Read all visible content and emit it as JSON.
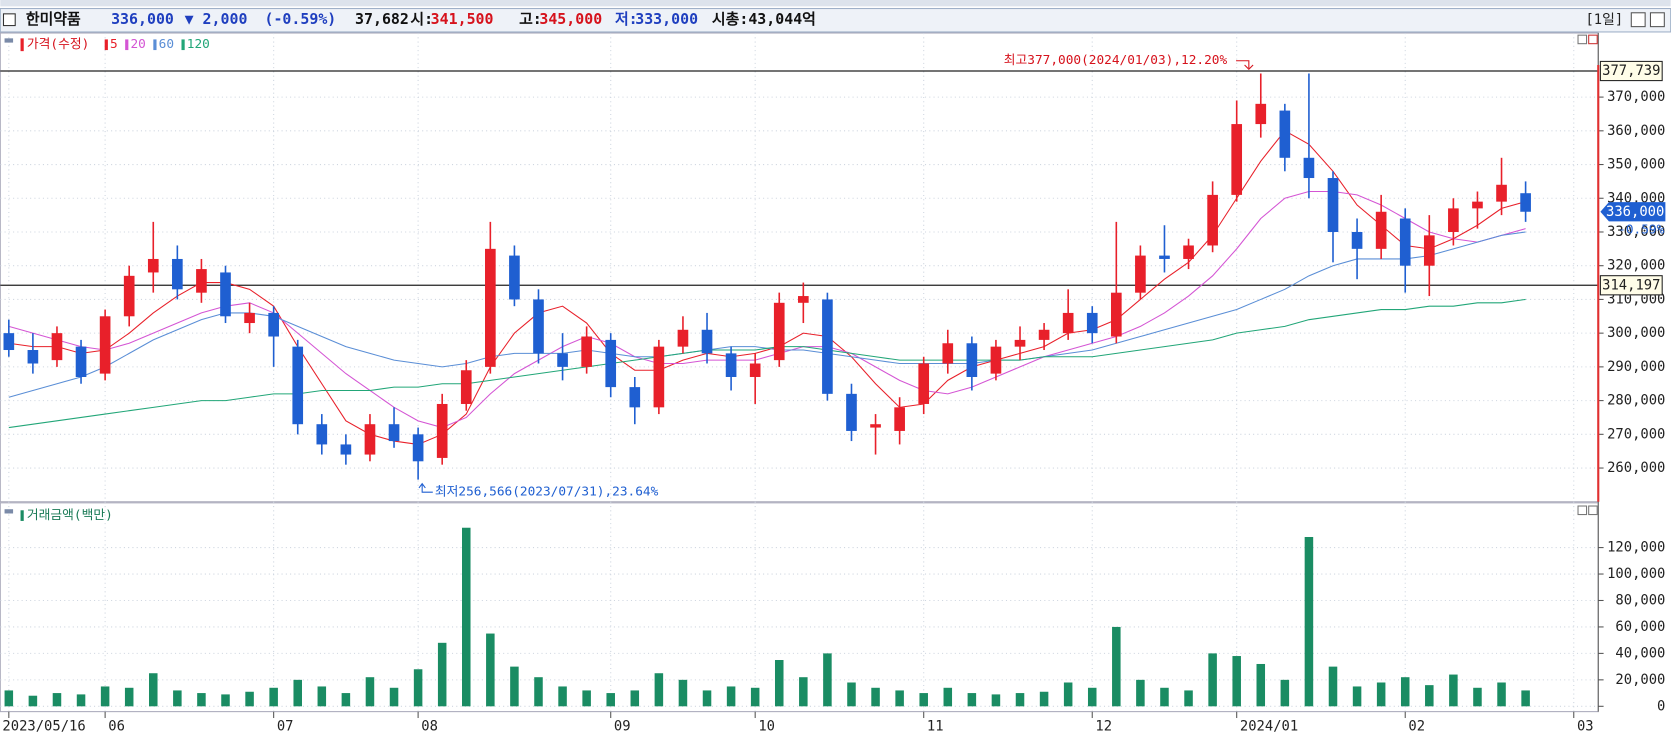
{
  "header": {
    "name": "한미약품",
    "price": "336,000",
    "change": "▼ 2,000",
    "change_pct": "(-0.59%)",
    "volume": "37,682",
    "open_label": "시:",
    "open": "341,500",
    "high_label": "고:",
    "high": "345,000",
    "low_label": "저:",
    "low": "333,000",
    "market_cap": "시총:43,044억",
    "period": "[1일]"
  },
  "chart_data": [
    {
      "type": "candlestick",
      "name": "가격(수정)",
      "up_color": "#e8202a",
      "down_color": "#1f5fd1",
      "categories": [
        "2023/05/16",
        null,
        null,
        null,
        "06",
        null,
        null,
        null,
        null,
        null,
        null,
        "07",
        null,
        null,
        null,
        null,
        null,
        "08",
        null,
        null,
        null,
        null,
        null,
        null,
        null,
        "09",
        null,
        null,
        null,
        null,
        null,
        "10",
        null,
        null,
        null,
        null,
        null,
        null,
        "11",
        null,
        null,
        null,
        null,
        null,
        null,
        "12",
        null,
        null,
        null,
        null,
        null,
        "2024/01",
        null,
        null,
        null,
        null,
        null,
        null,
        "02",
        null,
        null,
        null,
        null,
        null,
        null,
        "03"
      ],
      "open": [
        300000,
        295000,
        292000,
        296000,
        288000,
        305000,
        318000,
        322000,
        312000,
        318000,
        303000,
        306000,
        296000,
        273000,
        267000,
        264000,
        273000,
        270000,
        263000,
        279000,
        290000,
        323000,
        310000,
        294000,
        290000,
        298000,
        284000,
        278000,
        296000,
        301000,
        294000,
        287000,
        292000,
        309000,
        310000,
        282000,
        272000,
        271000,
        279000,
        291000,
        297000,
        288000,
        296000,
        298000,
        300000,
        306000,
        299000,
        312000,
        323000,
        322000,
        326000,
        341000,
        362000,
        366000,
        352000,
        346000,
        330000,
        325000,
        334000,
        320000,
        330000,
        337000,
        339000,
        341500,
        null,
        null
      ],
      "high": [
        304000,
        300000,
        302000,
        298000,
        307000,
        320000,
        333000,
        326000,
        322000,
        320000,
        309000,
        308000,
        298000,
        276000,
        270000,
        276000,
        278000,
        272000,
        282000,
        292000,
        333000,
        326000,
        313000,
        300000,
        302000,
        300000,
        287000,
        298000,
        305000,
        306000,
        296000,
        294000,
        312000,
        315000,
        312000,
        285000,
        276000,
        281000,
        293000,
        301000,
        299000,
        298000,
        302000,
        303000,
        313000,
        308000,
        333000,
        326000,
        332000,
        328000,
        345000,
        369000,
        377000,
        368000,
        377000,
        348000,
        334000,
        341000,
        337000,
        335000,
        340000,
        342000,
        352000,
        345000,
        null,
        null
      ],
      "low": [
        293000,
        288000,
        290000,
        285000,
        286000,
        302000,
        312000,
        310000,
        309000,
        303000,
        300000,
        290000,
        270000,
        264000,
        261000,
        262000,
        266000,
        256566,
        261000,
        277000,
        288000,
        308000,
        291000,
        286000,
        288000,
        281000,
        273000,
        276000,
        294000,
        291000,
        283000,
        279000,
        290000,
        303000,
        280000,
        268000,
        264000,
        267000,
        276000,
        288000,
        283000,
        286000,
        292000,
        295000,
        298000,
        297000,
        297000,
        310000,
        318000,
        319000,
        324000,
        339000,
        358000,
        348000,
        340000,
        321000,
        316000,
        322000,
        312000,
        311000,
        326000,
        331000,
        335000,
        333000,
        null,
        null
      ],
      "close": [
        295000,
        291000,
        300000,
        287000,
        305000,
        317000,
        322000,
        313000,
        319000,
        305000,
        306000,
        299000,
        273000,
        267000,
        264000,
        273000,
        268000,
        262000,
        279000,
        289000,
        325000,
        310000,
        294000,
        290000,
        299000,
        284000,
        278000,
        296000,
        301000,
        294000,
        287000,
        291000,
        309000,
        311000,
        282000,
        271000,
        273000,
        278000,
        291000,
        297000,
        287000,
        296000,
        298000,
        301000,
        306000,
        300000,
        312000,
        323000,
        322000,
        326000,
        341000,
        362000,
        368000,
        352000,
        346000,
        330000,
        325000,
        336000,
        320000,
        329000,
        337000,
        339000,
        344000,
        336000,
        null,
        null
      ],
      "series": [
        {
          "name": "5",
          "color": "#e8202a",
          "values": [
            297000,
            296000,
            296000,
            294000,
            295000,
            300000,
            306000,
            311000,
            315000,
            315000,
            313000,
            308000,
            296000,
            285000,
            274000,
            270000,
            268000,
            267000,
            270000,
            276000,
            290000,
            300000,
            306000,
            308000,
            303000,
            294000,
            289000,
            289000,
            292000,
            294000,
            293000,
            294000,
            296000,
            300000,
            299000,
            293000,
            285000,
            278000,
            279000,
            286000,
            290000,
            292000,
            294000,
            296000,
            300000,
            301000,
            304000,
            310000,
            316000,
            321000,
            329000,
            340000,
            351000,
            360000,
            356000,
            348000,
            338000,
            332000,
            326000,
            325000,
            328000,
            332000,
            337000,
            339000,
            null,
            null
          ]
        },
        {
          "name": "20",
          "color": "#d455d4",
          "values": [
            302000,
            300000,
            298000,
            296000,
            295000,
            297000,
            300000,
            303000,
            306000,
            308000,
            309000,
            306000,
            300000,
            294000,
            288000,
            283000,
            278000,
            274000,
            272000,
            275000,
            282000,
            288000,
            292000,
            296000,
            299000,
            297000,
            293000,
            291000,
            291000,
            292000,
            292000,
            292000,
            294000,
            296000,
            296000,
            294000,
            290000,
            286000,
            283000,
            282000,
            284000,
            287000,
            290000,
            293000,
            295000,
            297000,
            299000,
            302000,
            306000,
            311000,
            317000,
            325000,
            334000,
            340000,
            342000,
            342000,
            341000,
            338000,
            334000,
            330000,
            328000,
            327000,
            329000,
            331000,
            null,
            null
          ]
        },
        {
          "name": "60",
          "color": "#5a8ed6",
          "values": [
            281000,
            283000,
            285000,
            287000,
            290000,
            294000,
            298000,
            301000,
            304000,
            306000,
            306000,
            305000,
            302000,
            299000,
            296000,
            294000,
            292000,
            291000,
            290000,
            291000,
            293000,
            294000,
            294000,
            294000,
            295000,
            294000,
            293000,
            293000,
            294000,
            295000,
            296000,
            296000,
            295000,
            295000,
            294000,
            293000,
            292000,
            291000,
            291000,
            291000,
            291000,
            292000,
            292000,
            293000,
            294000,
            295000,
            297000,
            299000,
            301000,
            303000,
            305000,
            307000,
            310000,
            313000,
            317000,
            320000,
            322000,
            322000,
            322000,
            323000,
            325000,
            327000,
            329000,
            330000,
            null,
            null
          ]
        },
        {
          "name": "120",
          "color": "#22a678",
          "values": [
            272000,
            273000,
            274000,
            275000,
            276000,
            277000,
            278000,
            279000,
            280000,
            280000,
            281000,
            282000,
            282000,
            283000,
            283000,
            283000,
            284000,
            284000,
            285000,
            285000,
            286000,
            287000,
            288000,
            289000,
            290000,
            291000,
            292000,
            293000,
            294000,
            295000,
            295000,
            295000,
            296000,
            296000,
            295000,
            294000,
            293000,
            292000,
            292000,
            292000,
            292000,
            292000,
            292000,
            293000,
            293000,
            293000,
            294000,
            295000,
            296000,
            297000,
            298000,
            300000,
            301000,
            302000,
            304000,
            305000,
            306000,
            307000,
            307000,
            308000,
            308000,
            309000,
            309000,
            310000,
            null,
            null
          ]
        }
      ],
      "ylim": [
        250000,
        389000
      ],
      "yticks": [
        {
          "value": 260000,
          "label": "260,000"
        },
        {
          "value": 270000,
          "label": "270,000"
        },
        {
          "value": 280000,
          "label": "280,000"
        },
        {
          "value": 290000,
          "label": "290,000"
        },
        {
          "value": 300000,
          "label": "300,000"
        },
        {
          "value": 310000,
          "label": "310,000"
        },
        {
          "value": 320000,
          "label": "320,000"
        },
        {
          "value": 330000,
          "label": "330,000"
        },
        {
          "value": 340000,
          "label": "340,000"
        },
        {
          "value": 350000,
          "label": "350,000"
        },
        {
          "value": 360000,
          "label": "360,000"
        },
        {
          "value": 370000,
          "label": "370,000"
        }
      ],
      "reference_lines": [
        {
          "value": 377739,
          "label": "377,739"
        },
        {
          "value": 314197,
          "label": "314,197"
        }
      ],
      "last_price": {
        "value": 336000,
        "label": "336,000"
      },
      "last_change": "-0.59%",
      "high_note": "최고377,000(2024/01/03),12.20%",
      "low_note": "최저256,566(2023/07/31),23.64%",
      "grid": true
    },
    {
      "type": "bar",
      "title": "거래금액(백만)",
      "color": "#1a8c63",
      "values": [
        12000,
        8000,
        10000,
        9000,
        15000,
        14000,
        25000,
        12000,
        10000,
        9000,
        11000,
        14000,
        20000,
        15000,
        10000,
        22000,
        14000,
        28000,
        48000,
        135000,
        55000,
        30000,
        22000,
        15000,
        12000,
        10000,
        12000,
        25000,
        20000,
        12000,
        15000,
        14000,
        35000,
        22000,
        40000,
        18000,
        14000,
        12000,
        10000,
        14000,
        10000,
        9000,
        10000,
        11000,
        18000,
        14000,
        60000,
        20000,
        14000,
        12000,
        40000,
        38000,
        32000,
        20000,
        128000,
        30000,
        15000,
        18000,
        22000,
        16000,
        24000,
        14000,
        18000,
        12000,
        null,
        null
      ],
      "ylim": [
        0,
        149000
      ],
      "yticks": [
        0,
        {
          "value": 20000,
          "label": "20,000"
        },
        {
          "value": 40000,
          "label": "40,000"
        },
        {
          "value": 60000,
          "label": "60,000"
        },
        {
          "value": 80000,
          "label": "80,000"
        },
        {
          "value": 100000,
          "label": "100,000"
        },
        {
          "value": 120000,
          "label": "120,000"
        }
      ],
      "grid": true
    }
  ]
}
